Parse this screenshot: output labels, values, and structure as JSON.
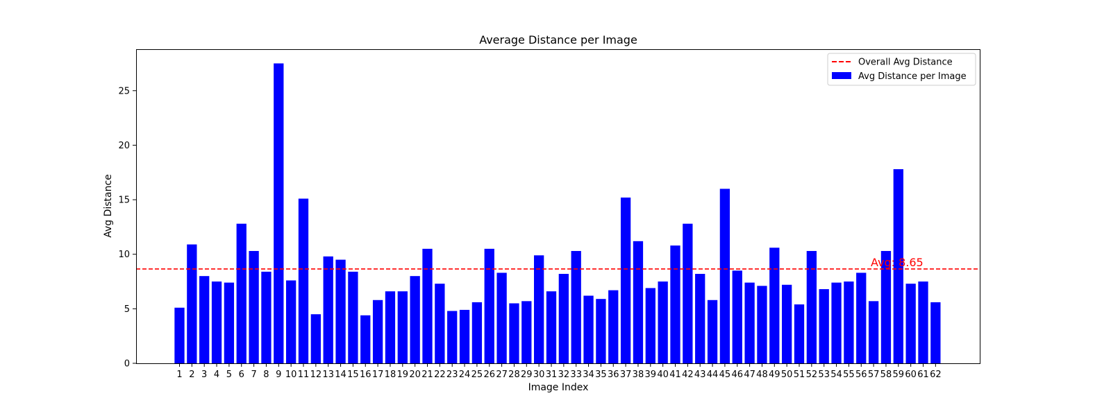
{
  "chart_data": {
    "type": "bar",
    "title": "Average Distance per Image",
    "xlabel": "Image Index",
    "ylabel": "Avg Distance",
    "ylim": [
      0,
      28.8
    ],
    "yticks": [
      0,
      5,
      10,
      15,
      20,
      25
    ],
    "categories": [
      "1",
      "2",
      "3",
      "4",
      "5",
      "6",
      "7",
      "8",
      "9",
      "10",
      "11",
      "12",
      "13",
      "14",
      "15",
      "16",
      "17",
      "18",
      "19",
      "20",
      "21",
      "22",
      "23",
      "24",
      "25",
      "26",
      "27",
      "28",
      "29",
      "30",
      "31",
      "32",
      "33",
      "34",
      "35",
      "36",
      "37",
      "38",
      "39",
      "40",
      "41",
      "42",
      "43",
      "44",
      "45",
      "46",
      "47",
      "48",
      "49",
      "50",
      "51",
      "52",
      "53",
      "54",
      "55",
      "56",
      "57",
      "58",
      "59",
      "60",
      "61",
      "62"
    ],
    "series": [
      {
        "name": "Avg Distance per Image",
        "color": "#0000ff",
        "values": [
          5.1,
          10.9,
          8.0,
          7.5,
          7.4,
          12.8,
          10.3,
          8.4,
          27.5,
          7.6,
          15.1,
          4.5,
          9.8,
          9.5,
          8.4,
          4.4,
          5.8,
          6.6,
          6.6,
          8.0,
          10.5,
          7.3,
          4.8,
          4.9,
          5.6,
          10.5,
          8.3,
          5.5,
          5.7,
          9.9,
          6.6,
          8.2,
          10.3,
          6.2,
          5.9,
          6.7,
          15.2,
          11.2,
          6.9,
          7.5,
          10.8,
          12.8,
          8.2,
          5.8,
          16.0,
          8.5,
          7.4,
          7.1,
          10.6,
          7.2,
          5.4,
          10.3,
          6.8,
          7.4,
          7.5,
          8.3,
          5.7,
          10.3,
          17.8,
          7.3,
          7.5,
          5.6
        ]
      }
    ],
    "average_line": {
      "name": "Overall Avg Distance",
      "value": 8.65,
      "label": "Avg: 8.65",
      "color": "#ff0000",
      "style": "dashed"
    },
    "legend_position": "top-right",
    "grid": false
  }
}
